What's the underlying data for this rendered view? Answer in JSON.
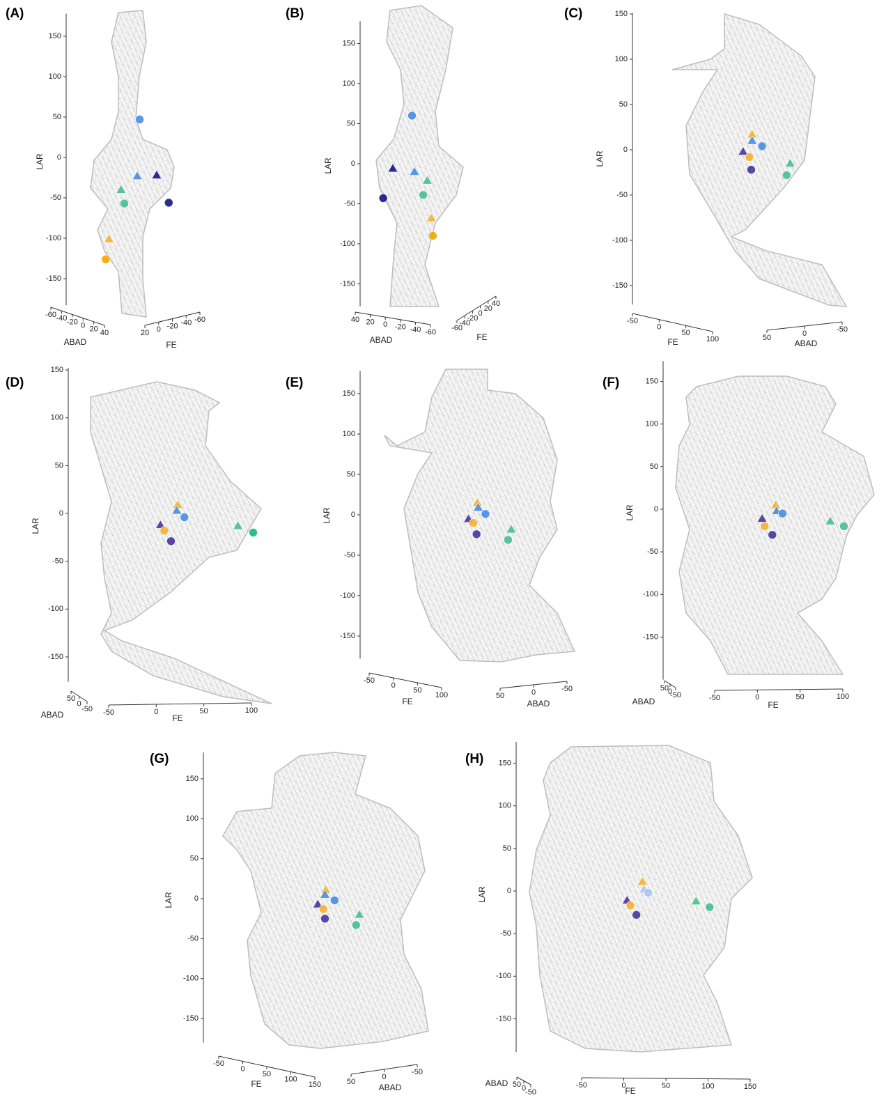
{
  "chart_data": [
    {
      "type": "scatter3d",
      "title": "(A)",
      "ylabel": "LAR",
      "xlabel": "FE",
      "zlabel": "ABAD",
      "ylim": [
        -183,
        178
      ],
      "yticks": [
        150,
        100,
        50,
        0,
        -50,
        -100,
        -150
      ],
      "xticks": [
        20,
        0,
        -20,
        -40,
        -60
      ],
      "zticks": [
        -60,
        -40,
        -20,
        0,
        20,
        40
      ],
      "points": [
        {
          "marker": "circle",
          "color": "#4a90e2",
          "x": 22,
          "y": 47
        },
        {
          "marker": "triangle",
          "color": "#4a90e2",
          "x": 19,
          "y": -23
        },
        {
          "marker": "triangle",
          "color": "#1a1a8c",
          "x": 43,
          "y": -22
        },
        {
          "marker": "triangle",
          "color": "#4cbf92",
          "x": -1,
          "y": -40
        },
        {
          "marker": "circle",
          "color": "#4cbf92",
          "x": 3,
          "y": -57
        },
        {
          "marker": "circle",
          "color": "#1a1a8c",
          "x": 58,
          "y": -56
        },
        {
          "marker": "triangle",
          "color": "#f5b335",
          "x": -16,
          "y": -101
        },
        {
          "marker": "circle",
          "color": "#f5a800",
          "x": -20,
          "y": -126
        }
      ]
    },
    {
      "type": "scatter3d",
      "title": "(B)",
      "ylabel": "LAR",
      "xlabel": "FE",
      "zlabel": "ABAD",
      "ylim": [
        -178,
        178
      ],
      "yticks": [
        150,
        100,
        50,
        0,
        -50,
        -100,
        -150
      ],
      "xticks": [
        -60,
        -40,
        -20,
        0,
        20,
        40
      ],
      "zticks": [
        40,
        20,
        0,
        -20,
        -40,
        -60
      ],
      "points": [
        {
          "marker": "circle",
          "color": "#4a90e2",
          "x": -3,
          "y": 60
        },
        {
          "marker": "triangle",
          "color": "#1a1a8c",
          "x": -27,
          "y": -6
        },
        {
          "marker": "triangle",
          "color": "#4a90e2",
          "x": 0,
          "y": -10
        },
        {
          "marker": "triangle",
          "color": "#4cbf92",
          "x": 16,
          "y": -21
        },
        {
          "marker": "circle",
          "color": "#4cbf92",
          "x": 11,
          "y": -39
        },
        {
          "marker": "circle",
          "color": "#1a1a8c",
          "x": -39,
          "y": -43
        },
        {
          "marker": "triangle",
          "color": "#f5b335",
          "x": 21,
          "y": -68
        },
        {
          "marker": "circle",
          "color": "#f5a800",
          "x": 23,
          "y": -90
        }
      ]
    },
    {
      "type": "scatter3d",
      "title": "(C)",
      "ylabel": "LAR",
      "xlabel": "FE",
      "zlabel": "ABAD",
      "ylim": [
        -171,
        151
      ],
      "yticks": [
        150,
        100,
        50,
        0,
        -50,
        -100,
        -150
      ],
      "xticks": [
        -50,
        0,
        50,
        100
      ],
      "zticks": [
        50,
        0,
        -50
      ],
      "points": [
        {
          "marker": "triangle",
          "color": "#f5b335",
          "x": -4,
          "y": 17
        },
        {
          "marker": "triangle",
          "color": "#4a90e2",
          "x": -4,
          "y": 10
        },
        {
          "marker": "circle",
          "color": "#4a90e2",
          "x": 7,
          "y": 4
        },
        {
          "marker": "triangle",
          "color": "#4b3a9e",
          "x": -14,
          "y": -2
        },
        {
          "marker": "circle",
          "color": "#f5b335",
          "x": -7,
          "y": -8
        },
        {
          "marker": "triangle",
          "color": "#4cbf92",
          "x": 38,
          "y": -15
        },
        {
          "marker": "circle",
          "color": "#4b3a9e",
          "x": -5,
          "y": -22
        },
        {
          "marker": "circle",
          "color": "#4cbf92",
          "x": 34,
          "y": -28
        }
      ]
    },
    {
      "type": "scatter3d",
      "title": "(D)",
      "ylabel": "LAR",
      "xlabel": "FE",
      "zlabel": "ABAD",
      "ylim": [
        -176,
        152
      ],
      "yticks": [
        150,
        100,
        50,
        0,
        -50,
        -100,
        -150
      ],
      "xticks": [
        -50,
        0,
        50,
        100
      ],
      "zticks": [
        50,
        0,
        -50
      ],
      "points": [
        {
          "marker": "triangle",
          "color": "#f5b335",
          "x": 11,
          "y": 9
        },
        {
          "marker": "triangle",
          "color": "#4a90e2",
          "x": 10,
          "y": 3
        },
        {
          "marker": "circle",
          "color": "#4a90e2",
          "x": 18,
          "y": -4
        },
        {
          "marker": "triangle",
          "color": "#4b3a9e",
          "x": -7,
          "y": -12
        },
        {
          "marker": "circle",
          "color": "#f5b335",
          "x": -3,
          "y": -18
        },
        {
          "marker": "triangle",
          "color": "#4cbf92",
          "x": 74,
          "y": -13
        },
        {
          "marker": "circle",
          "color": "#1fb87a",
          "x": 90,
          "y": -20
        },
        {
          "marker": "circle",
          "color": "#4b3a9e",
          "x": 4,
          "y": -29
        }
      ]
    },
    {
      "type": "scatter3d",
      "title": "(E)",
      "ylabel": "LAR",
      "xlabel": "FE",
      "zlabel": "ABAD",
      "ylim": [
        -178,
        178
      ],
      "yticks": [
        150,
        100,
        50,
        0,
        -50,
        -100,
        -150
      ],
      "xticks": [
        -50,
        0,
        50,
        100
      ],
      "zticks": [
        50,
        0,
        -50
      ],
      "points": [
        {
          "marker": "triangle",
          "color": "#f5b335",
          "x": -4,
          "y": 15
        },
        {
          "marker": "triangle",
          "color": "#4a90e2",
          "x": -3,
          "y": 9
        },
        {
          "marker": "circle",
          "color": "#4a90e2",
          "x": 6,
          "y": 1
        },
        {
          "marker": "triangle",
          "color": "#4b3a9e",
          "x": -15,
          "y": -5
        },
        {
          "marker": "circle",
          "color": "#f5b335",
          "x": -9,
          "y": -10
        },
        {
          "marker": "triangle",
          "color": "#4cbf92",
          "x": 38,
          "y": -18
        },
        {
          "marker": "circle",
          "color": "#4b3a9e",
          "x": -5,
          "y": -24
        },
        {
          "marker": "circle",
          "color": "#4cbf92",
          "x": 34,
          "y": -31
        }
      ]
    },
    {
      "type": "scatter3d",
      "title": "(F)",
      "ylabel": "LAR",
      "xlabel": "FE",
      "zlabel": "ABAD",
      "ylim": [
        -200,
        174
      ],
      "yticks": [
        150,
        100,
        50,
        0,
        -50,
        -100,
        -150
      ],
      "xticks": [
        -50,
        0,
        50,
        100
      ],
      "zticks": [
        50,
        0,
        -50
      ],
      "points": [
        {
          "marker": "triangle",
          "color": "#f5b335",
          "x": 3,
          "y": 5
        },
        {
          "marker": "triangle",
          "color": "#4a90e2",
          "x": 4,
          "y": -2
        },
        {
          "marker": "circle",
          "color": "#4a90e2",
          "x": 11,
          "y": -5
        },
        {
          "marker": "triangle",
          "color": "#4b3a9e",
          "x": -13,
          "y": -11
        },
        {
          "marker": "circle",
          "color": "#f5b335",
          "x": -10,
          "y": -20
        },
        {
          "marker": "triangle",
          "color": "#4cbf92",
          "x": 67,
          "y": -14
        },
        {
          "marker": "circle",
          "color": "#4cbf92",
          "x": 83,
          "y": -20
        },
        {
          "marker": "circle",
          "color": "#4b3a9e",
          "x": -1,
          "y": -30
        }
      ]
    },
    {
      "type": "scatter3d",
      "title": "(G)",
      "ylabel": "LAR",
      "xlabel": "FE",
      "zlabel": "ABAD",
      "ylim": [
        -180,
        183
      ],
      "yticks": [
        150,
        100,
        50,
        0,
        -50,
        -100,
        -150
      ],
      "xticks": [
        -50,
        0,
        50,
        100,
        150
      ],
      "zticks": [
        50,
        0,
        -50
      ],
      "points": [
        {
          "marker": "triangle",
          "color": "#f5b335",
          "x": -2,
          "y": 11
        },
        {
          "marker": "triangle",
          "color": "#4a90e2",
          "x": -3,
          "y": 5
        },
        {
          "marker": "circle",
          "color": "#4a90e2",
          "x": 9,
          "y": -2
        },
        {
          "marker": "triangle",
          "color": "#4b3a9e",
          "x": -12,
          "y": -7
        },
        {
          "marker": "circle",
          "color": "#f5b335",
          "x": -5,
          "y": -13
        },
        {
          "marker": "triangle",
          "color": "#4cbf92",
          "x": 40,
          "y": -20
        },
        {
          "marker": "circle",
          "color": "#4b3a9e",
          "x": -3,
          "y": -25
        },
        {
          "marker": "circle",
          "color": "#4cbf92",
          "x": 36,
          "y": -33
        }
      ]
    },
    {
      "type": "scatter3d",
      "title": "(H)",
      "ylabel": "LAR",
      "xlabel": "FE",
      "zlabel": "ABAD",
      "ylim": [
        -189,
        175
      ],
      "yticks": [
        150,
        100,
        50,
        0,
        -50,
        -100,
        -150
      ],
      "xticks": [
        -50,
        0,
        50,
        100,
        150
      ],
      "zticks": [
        50,
        0,
        -50
      ],
      "points": [
        {
          "marker": "triangle",
          "color": "#f5b335",
          "x": 10,
          "y": 11
        },
        {
          "marker": "triangle",
          "color": "#a9c8ee",
          "x": 12,
          "y": 2
        },
        {
          "marker": "circle",
          "color": "#a9c8ee",
          "x": 17,
          "y": -2
        },
        {
          "marker": "triangle",
          "color": "#4b3a9e",
          "x": -8,
          "y": -11
        },
        {
          "marker": "circle",
          "color": "#f5b335",
          "x": -4,
          "y": -17
        },
        {
          "marker": "triangle",
          "color": "#4cbf92",
          "x": 73,
          "y": -12
        },
        {
          "marker": "circle",
          "color": "#4cbf92",
          "x": 89,
          "y": -19
        },
        {
          "marker": "circle",
          "color": "#4b3a9e",
          "x": 3,
          "y": -28
        }
      ]
    }
  ]
}
